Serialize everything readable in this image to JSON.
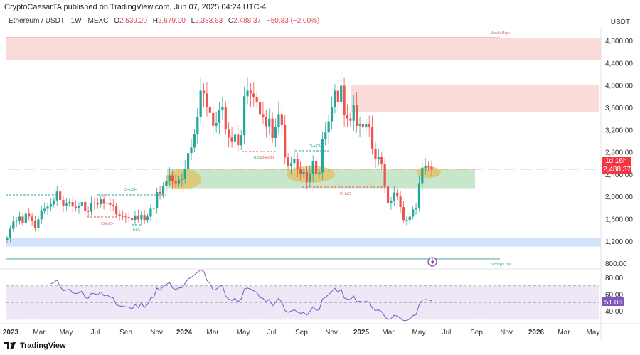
{
  "header": {
    "published": "CryptoCaesarTA published on TradingView.com, Jun 07, 2025 04:24 UTC-4",
    "symbol": "Ethereum / USDT · 1W · MEXC",
    "o_label": "O",
    "o": "2,539.20",
    "h_label": "H",
    "h": "2,679.00",
    "l_label": "L",
    "l": "2,383.63",
    "c_label": "C",
    "c": "2,488.37",
    "change": "−50.83 (−2.00%)"
  },
  "currency": "USDT",
  "footer": {
    "brand": "TradingView",
    "logo_icon": "tradingview-logo-icon"
  },
  "colors": {
    "up": "#26a69a",
    "down": "#ef5350",
    "rsi": "#7e57c2",
    "zone_supply": "#fbdada",
    "zone_demand": "#c8e6c9",
    "zone_low": "#d6e4fb",
    "highlight": "#e8b84a"
  },
  "price_badges": {
    "countdown": "1d 16h",
    "last": "2,488.37",
    "rsi_last": "51.06"
  },
  "annotations": {
    "weak_high": "Weak High",
    "strong_low": "Strong Low",
    "choch": "CHoCH",
    "eql": "EQL",
    "flash_icon": "lightning-icon"
  },
  "chart_data": [
    {
      "type": "candlestick",
      "title": "",
      "ylim": [
        800,
        4950
      ],
      "y_ticks": [
        "4,800.00",
        "4,400.00",
        "4,000.00",
        "3,600.00",
        "3,200.00",
        "2,800.00",
        "2,400.00",
        "2,000.00",
        "1,600.00",
        "1,200.00",
        "800.00"
      ],
      "y_tick_values": [
        4800,
        4400,
        4000,
        3600,
        3200,
        2800,
        2400,
        2000,
        1600,
        1200,
        800
      ],
      "x_ticks": [
        "2023",
        "Mar",
        "May",
        "Jul",
        "Sep",
        "Nov",
        "2024",
        "Mar",
        "May",
        "Jul",
        "Sep",
        "Nov",
        "2025",
        "Mar",
        "May",
        "Jul",
        "Sep",
        "Nov",
        "2026",
        "Mar",
        "May"
      ],
      "x_range": [
        "2022-12-26",
        "2026-05-31"
      ],
      "first_candle": "2022-12-26",
      "interval": "1W",
      "closes": [
        1250,
        1420,
        1550,
        1570,
        1640,
        1520,
        1690,
        1640,
        1570,
        1440,
        1590,
        1750,
        1780,
        1820,
        1860,
        1930,
        2090,
        1940,
        1840,
        1870,
        1900,
        1820,
        1800,
        1830,
        1900,
        1740,
        1730,
        1890,
        1880,
        1860,
        1950,
        1870,
        1890,
        1850,
        1830,
        1680,
        1650,
        1640,
        1630,
        1620,
        1580,
        1660,
        1590,
        1670,
        1580,
        1640,
        1780,
        1800,
        2080,
        2040,
        2190,
        2280,
        2380,
        2270,
        2240,
        2300,
        2310,
        2500,
        2780,
        2880,
        3120,
        3430,
        3900,
        3850,
        3600,
        3500,
        3270,
        3320,
        3550,
        3600,
        3200,
        3060,
        2990,
        3110,
        2920,
        3100,
        3800,
        3900,
        3850,
        3780,
        3700,
        3480,
        3430,
        3260,
        3400,
        3050,
        3250,
        3480,
        3280,
        2700,
        2550,
        2600,
        2680,
        2500,
        2410,
        2440,
        2260,
        2410,
        2640,
        2400,
        2430,
        3030,
        3150,
        3350,
        3600,
        3900,
        3700,
        3990,
        3470,
        3400,
        3360,
        3650,
        3270,
        3300,
        3240,
        3300,
        3250,
        2860,
        2680,
        2710,
        2580,
        2180,
        1880,
        1920,
        2070,
        2000,
        1810,
        1580,
        1580,
        1640,
        1770,
        1800,
        2240,
        2510,
        2550,
        2530,
        2488.37
      ],
      "last_price": 2488.37,
      "zones": [
        {
          "name": "supply-zone-top",
          "from": 4450,
          "to": 4850
        },
        {
          "name": "supply-zone-2025",
          "from": 3520,
          "to": 4000
        },
        {
          "name": "demand-zone",
          "from": 2150,
          "to": 2500
        },
        {
          "name": "low-zone",
          "from": 1100,
          "to": 1250
        }
      ],
      "levels": [
        {
          "label": "Weak High",
          "price": 4850
        },
        {
          "label": "Strong Low",
          "price": 880
        }
      ]
    },
    {
      "type": "line",
      "title": "",
      "series": [
        {
          "values_from": "RSI(14) of closes"
        }
      ],
      "ylim": [
        20,
        90
      ],
      "y_ticks": [
        "80.00",
        "60.00",
        "40.00"
      ],
      "y_tick_values": [
        80,
        60,
        40
      ],
      "bands": [
        30,
        50,
        70
      ],
      "last_value": 51.06
    }
  ]
}
